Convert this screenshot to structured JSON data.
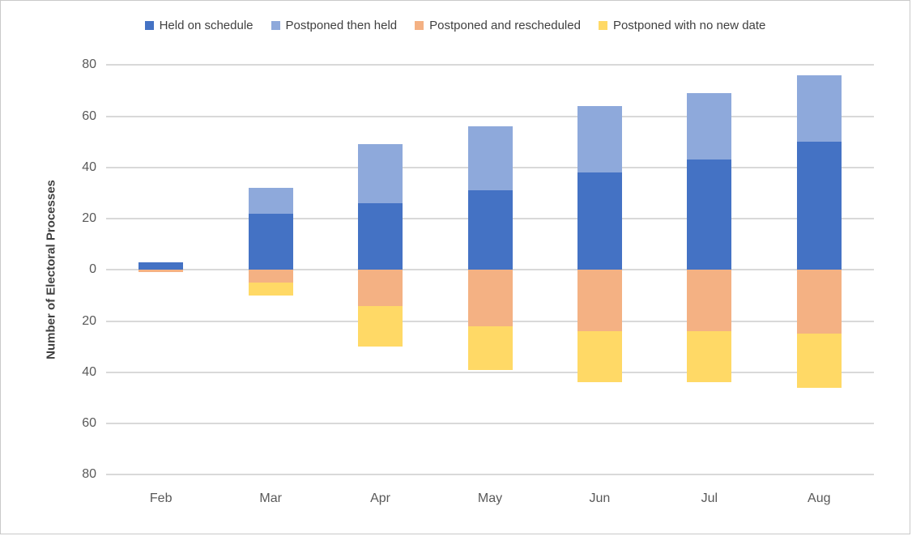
{
  "chart_data": {
    "type": "bar",
    "variant": "diverging-stacked-column",
    "title": "",
    "xlabel": "",
    "ylabel": "Number of Electoral Processes",
    "categories": [
      "Feb",
      "Mar",
      "Apr",
      "May",
      "Jun",
      "Jul",
      "Aug"
    ],
    "series": [
      {
        "name": "Held on schedule",
        "color": "#4472C4",
        "direction": "up",
        "values": [
          3,
          22,
          26,
          31,
          38,
          43,
          50
        ]
      },
      {
        "name": "Postponed then held",
        "color": "#8EA9DB",
        "direction": "up",
        "values": [
          0,
          10,
          23,
          25,
          26,
          26,
          26
        ]
      },
      {
        "name": "Postponed and rescheduled",
        "color": "#F4B183",
        "direction": "down",
        "values": [
          1,
          5,
          14,
          22,
          24,
          24,
          25
        ]
      },
      {
        "name": "Postponed with no new date",
        "color": "#FFD966",
        "direction": "down",
        "values": [
          0,
          5,
          16,
          17,
          20,
          20,
          21
        ]
      }
    ],
    "stack_totals_up": [
      3,
      32,
      49,
      56,
      64,
      69,
      76
    ],
    "stack_totals_down": [
      1,
      10,
      30,
      39,
      44,
      44,
      46
    ],
    "yticks": [
      80,
      60,
      40,
      20,
      0,
      -20,
      -40,
      -60,
      -80
    ],
    "ytick_labels": [
      "80",
      "60",
      "40",
      "20",
      "0",
      "20",
      "40",
      "60",
      "80"
    ],
    "ylim": [
      -80,
      80
    ],
    "grid": true,
    "gridline_color": "#D9D9D9",
    "legend_position": "top",
    "text_color": "#595959"
  }
}
